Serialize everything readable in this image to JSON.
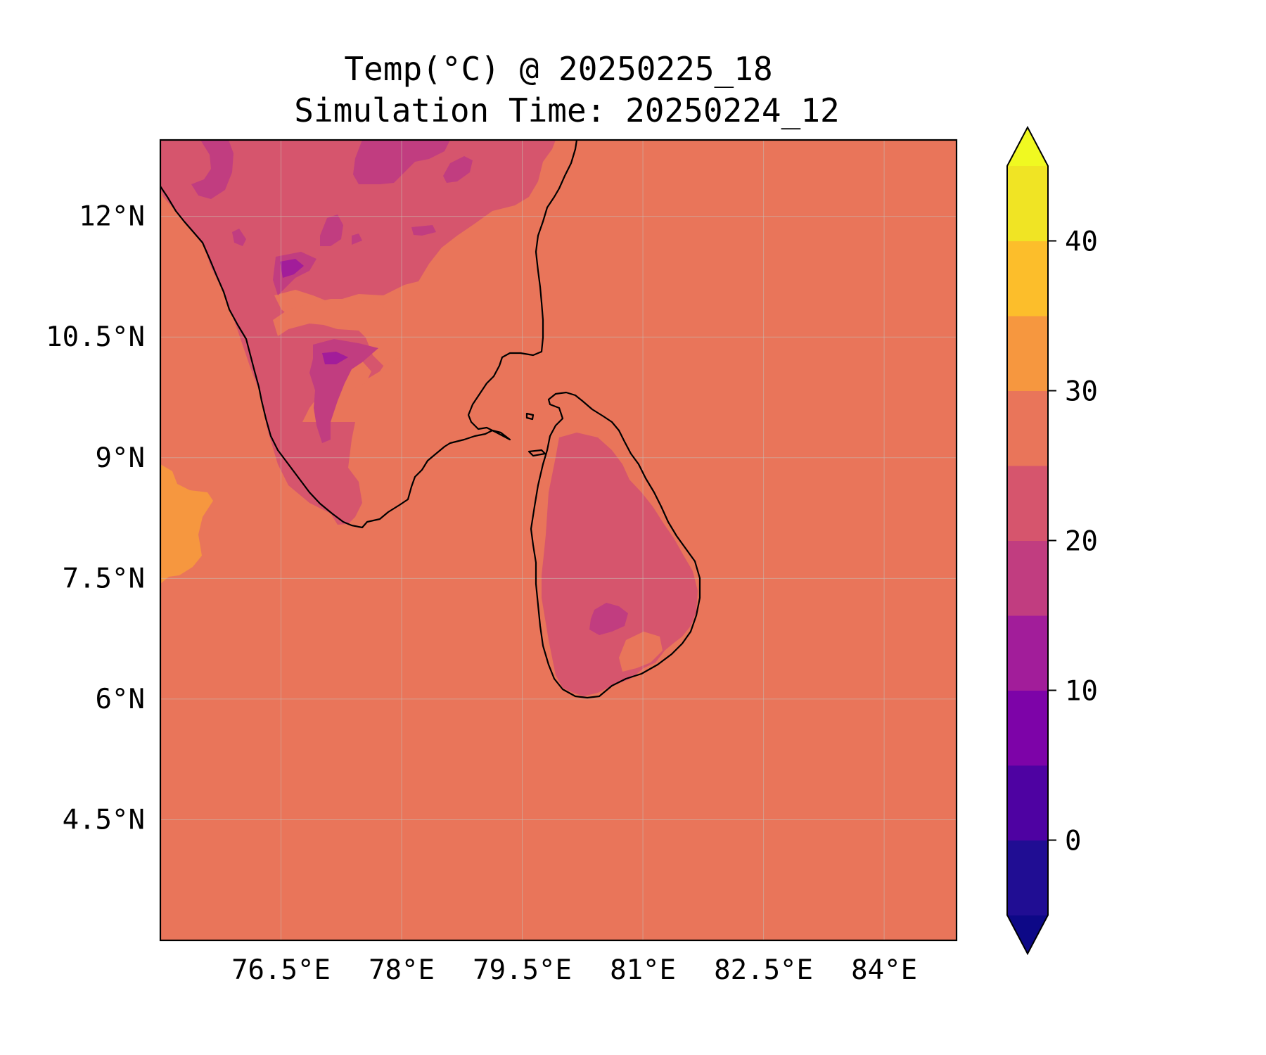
{
  "chart_data": {
    "type": "filled-contour map",
    "title": "Temp(°C) @ 20250225_18",
    "subtitle": "Simulation Time: 20250224_12",
    "variable_unit": "°C",
    "x_axis": {
      "ticks": [
        76.5,
        78,
        79.5,
        81,
        82.5,
        84
      ],
      "tick_labels": [
        "76.5°E",
        "78°E",
        "79.5°E",
        "81°E",
        "82.5°E",
        "84°E"
      ],
      "range": [
        75.0,
        84.9
      ]
    },
    "y_axis": {
      "ticks": [
        4.5,
        6,
        7.5,
        9,
        10.5,
        12
      ],
      "tick_labels": [
        "4.5°N",
        "6°N",
        "7.5°N",
        "9°N",
        "10.5°N",
        "12°N"
      ],
      "range": [
        3.0,
        12.95
      ]
    },
    "grid": true,
    "colorbar": {
      "placement": "right",
      "extend": "both",
      "levels": [
        -5,
        0,
        5,
        10,
        15,
        20,
        25,
        30,
        35,
        40,
        45
      ],
      "ticks": [
        0,
        10,
        20,
        30,
        40
      ],
      "tick_labels": [
        "0",
        "10",
        "20",
        "30",
        "40"
      ],
      "colors": [
        "#200d93",
        "#4e02a2",
        "#7d03a8",
        "#a21d9a",
        "#c13d80",
        "#d6556d",
        "#e9755a",
        "#f6973f",
        "#fcbe2b",
        "#f0e424"
      ],
      "under_color": "#0d0887",
      "over_color": "#f0f921"
    },
    "dominant_field": {
      "ocean_level_range": [
        25,
        30
      ],
      "western_ocean_warm_patch_range": [
        30,
        35
      ],
      "inland_range": [
        20,
        25
      ],
      "highland_range": [
        15,
        20
      ],
      "coldest_spots_range": [
        10,
        15
      ]
    }
  }
}
